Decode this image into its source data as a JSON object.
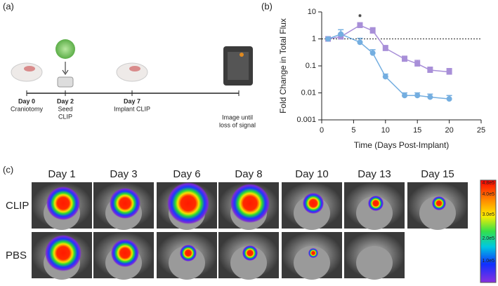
{
  "panel_labels": [
    "(a)",
    "(b)",
    "(c)"
  ],
  "timeline": {
    "events": [
      {
        "day": "Day 0",
        "label": [
          "Craniotomy"
        ]
      },
      {
        "day": "Day 2",
        "label": [
          "Seed",
          "CLIP"
        ]
      },
      {
        "day": "Day 7",
        "label": [
          "Implant CLIP"
        ]
      }
    ],
    "final": [
      "Image until",
      "loss of signal"
    ]
  },
  "chart_data": {
    "type": "line",
    "log_y": true,
    "ylabel": "Fold Change in Total Flux",
    "xlabel": "Time (Days Post-Implant)",
    "x": [
      1,
      3,
      6,
      8,
      10,
      13,
      15,
      17,
      20
    ],
    "series": [
      {
        "color": "#a88fd8",
        "values": [
          1,
          1.2,
          3.2,
          2.0,
          0.45,
          0.18,
          0.12,
          0.07,
          0.06
        ],
        "errors": [
          0.05,
          0.4,
          0.8,
          0.6,
          0.12,
          0.05,
          0.04,
          0.02,
          0.02
        ]
      },
      {
        "color": "#74aee0",
        "values": [
          1,
          1.5,
          0.75,
          0.3,
          0.04,
          0.008,
          0.008,
          0.007,
          0.006
        ],
        "errors": [
          0.05,
          0.7,
          0.3,
          0.1,
          0.01,
          0.002,
          0.002,
          0.002,
          0.002
        ]
      }
    ],
    "xlim": [
      0,
      25
    ],
    "xticks": [
      0,
      5,
      10,
      15,
      20,
      25
    ],
    "ylim": [
      0.001,
      10
    ],
    "yticks": [
      0.001,
      0.01,
      0.1,
      1,
      10
    ],
    "reference_line": 1,
    "annotations": [
      {
        "text": "*",
        "x": 6
      }
    ]
  },
  "image_grid": {
    "columns": [
      "Day 1",
      "Day 3",
      "Day 6",
      "Day 8",
      "Day 10",
      "Day 13",
      "Day 15"
    ],
    "rows": [
      "CLIP",
      "PBS"
    ]
  },
  "colorbar": {
    "labels": [
      "4.8e5",
      "4.0e5",
      "3.0e5",
      "2.0e5",
      "1.0e5"
    ]
  }
}
